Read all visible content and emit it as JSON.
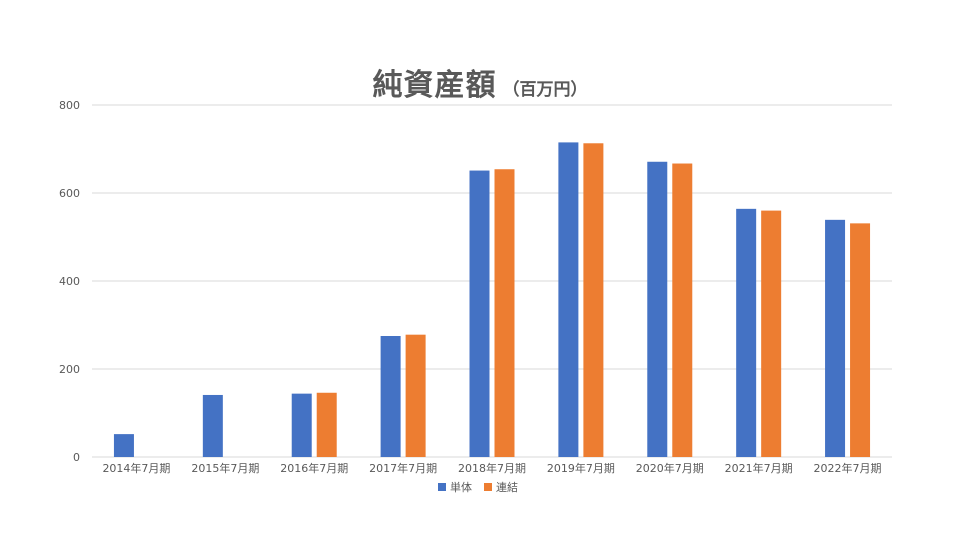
{
  "chart_data": {
    "type": "bar",
    "title": "純資産額",
    "subtitle": "（百万円）",
    "categories": [
      "2014年7月期",
      "2015年7月期",
      "2016年7月期",
      "2017年7月期",
      "2018年7月期",
      "2019年7月期",
      "2020年7月期",
      "2021年7月期",
      "2022年7月期"
    ],
    "series": [
      {
        "name": "単体",
        "color": "#4472C4",
        "values": [
          52,
          141,
          144,
          275,
          651,
          715,
          671,
          564,
          539
        ]
      },
      {
        "name": "連結",
        "color": "#ED7D31",
        "values": [
          null,
          null,
          146,
          278,
          654,
          713,
          667,
          560,
          531
        ]
      }
    ],
    "ylim": [
      0,
      800
    ],
    "yticks": [
      0,
      200,
      400,
      600,
      800
    ],
    "grid": true,
    "legend_position": "bottom",
    "gridline_color": "#D9D9D9"
  }
}
